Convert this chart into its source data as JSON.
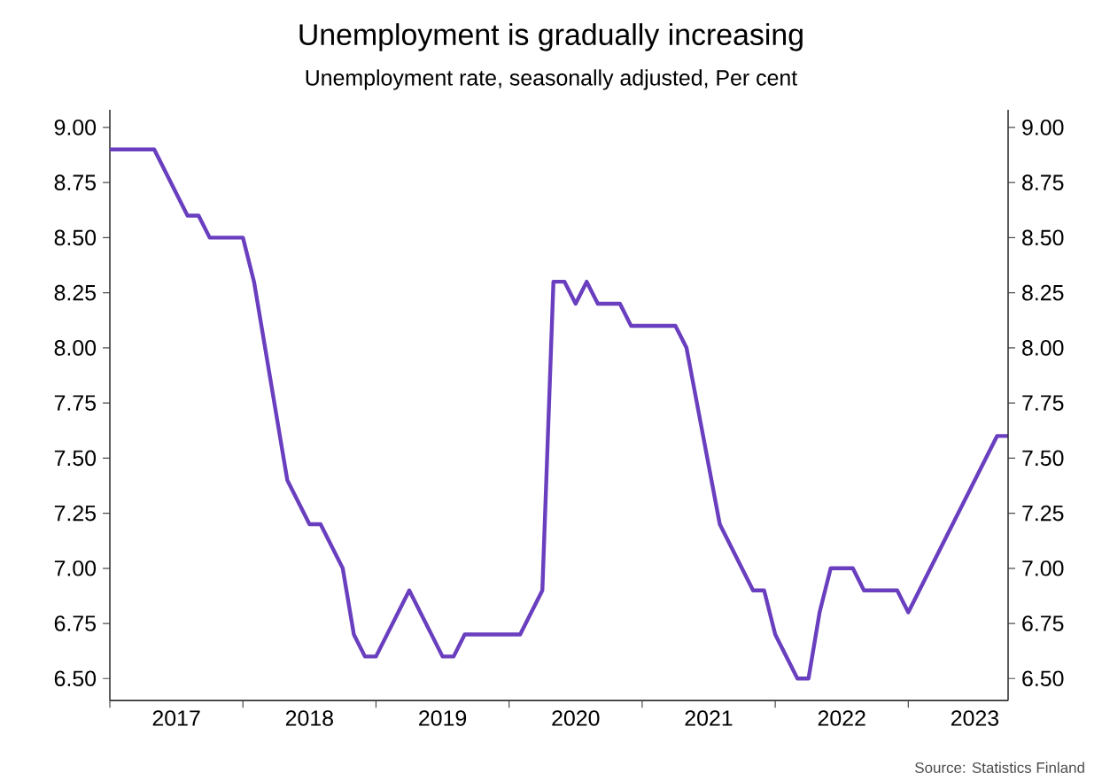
{
  "chart_data": {
    "type": "line",
    "title": "Unemployment is gradually increasing",
    "subtitle": "Unemployment rate, seasonally adjusted, Per cent",
    "annotations": [
      "Source: Statistics Finland"
    ],
    "x": [
      "2017-01",
      "2017-05",
      "2017-08",
      "2017-09",
      "2017-10",
      "2018-01",
      "2018-02",
      "2018-05",
      "2018-07",
      "2018-08",
      "2018-10",
      "2018-11",
      "2018-12",
      "2019-01",
      "2019-04",
      "2019-07",
      "2019-08",
      "2019-09",
      "2020-02",
      "2020-04",
      "2020-05",
      "2020-06",
      "2020-07",
      "2020-08",
      "2020-09",
      "2020-11",
      "2020-12",
      "2021-04",
      "2021-05",
      "2021-08",
      "2021-11",
      "2021-12",
      "2022-01",
      "2022-03",
      "2022-04",
      "2022-05",
      "2022-06",
      "2022-08",
      "2022-09",
      "2022-12",
      "2023-01",
      "2023-09",
      "2023-10"
    ],
    "series": [
      {
        "color": "#6a3fbf",
        "values": [
          8.9,
          8.9,
          8.6,
          8.6,
          8.5,
          8.5,
          8.3,
          7.4,
          7.2,
          7.2,
          7.0,
          6.7,
          6.6,
          6.6,
          6.9,
          6.6,
          6.6,
          6.7,
          6.7,
          6.9,
          8.3,
          8.3,
          8.2,
          8.3,
          8.2,
          8.2,
          8.1,
          8.1,
          8.0,
          7.2,
          6.9,
          6.9,
          6.7,
          6.5,
          6.5,
          6.8,
          7.0,
          7.0,
          6.9,
          6.9,
          6.8,
          7.6,
          7.6
        ]
      }
    ],
    "xlim": [
      "2017-01",
      "2023-10"
    ],
    "xticks": [
      {
        "value": "2017-01",
        "label": null
      },
      {
        "value": "2017-07",
        "label": "2017"
      },
      {
        "value": "2018-01",
        "label": null
      },
      {
        "value": "2018-07",
        "label": "2018"
      },
      {
        "value": "2019-01",
        "label": null
      },
      {
        "value": "2019-07",
        "label": "2019"
      },
      {
        "value": "2020-01",
        "label": null
      },
      {
        "value": "2020-07",
        "label": "2020"
      },
      {
        "value": "2021-01",
        "label": null
      },
      {
        "value": "2021-07",
        "label": "2021"
      },
      {
        "value": "2022-01",
        "label": null
      },
      {
        "value": "2022-07",
        "label": "2022"
      },
      {
        "value": "2023-01",
        "label": null
      },
      {
        "value": "2023-07",
        "label": "2023"
      }
    ],
    "ylim": [
      6.4,
      9.08
    ],
    "yticks": [
      {
        "value": 6.5,
        "label": "6.50"
      },
      {
        "value": 6.75,
        "label": "6.75"
      },
      {
        "value": 7.0,
        "label": "7.00"
      },
      {
        "value": 7.25,
        "label": "7.25"
      },
      {
        "value": 7.5,
        "label": "7.50"
      },
      {
        "value": 7.75,
        "label": "7.75"
      },
      {
        "value": 8.0,
        "label": "8.00"
      },
      {
        "value": 8.25,
        "label": "8.25"
      },
      {
        "value": 8.5,
        "label": "8.50"
      },
      {
        "value": 8.75,
        "label": "8.75"
      },
      {
        "value": 9.0,
        "label": "9.00"
      }
    ],
    "y2lim": [
      6.4,
      9.08
    ],
    "y2ticks": [
      {
        "value": 6.5,
        "label": "6.50"
      },
      {
        "value": 6.75,
        "label": "6.75"
      },
      {
        "value": 7.0,
        "label": "7.00"
      },
      {
        "value": 7.25,
        "label": "7.25"
      },
      {
        "value": 7.5,
        "label": "7.50"
      },
      {
        "value": 7.75,
        "label": "7.75"
      },
      {
        "value": 8.0,
        "label": "8.00"
      },
      {
        "value": 8.25,
        "label": "8.25"
      },
      {
        "value": 8.5,
        "label": "8.50"
      },
      {
        "value": 8.75,
        "label": "8.75"
      },
      {
        "value": 9.0,
        "label": "9.00"
      }
    ]
  }
}
